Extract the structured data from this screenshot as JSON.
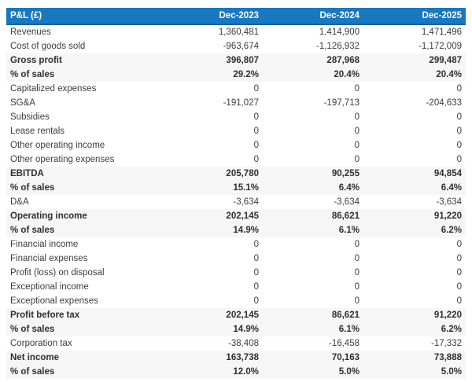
{
  "colors": {
    "header_bg": "#1878c0",
    "header_border": "#15629e",
    "header_text": "#ffffff",
    "total_row_bg": "#f6f6f6",
    "body_text": "#3c3c3c"
  },
  "chart_data": {
    "type": "table",
    "title": "P&L (£)",
    "header": {
      "label": "P&L (£)",
      "columns": [
        "Dec-2023",
        "Dec-2024",
        "Dec-2025"
      ]
    },
    "rows": [
      {
        "label": "Revenues",
        "values": [
          "1,360,481",
          "1,414,900",
          "1,471,496"
        ],
        "emphasis": false
      },
      {
        "label": "Cost of goods sold",
        "values": [
          "-963,674",
          "-1,126,932",
          "-1,172,009"
        ],
        "emphasis": false
      },
      {
        "label": "Gross profit",
        "values": [
          "396,807",
          "287,968",
          "299,487"
        ],
        "emphasis": true
      },
      {
        "label": "% of sales",
        "values": [
          "29.2%",
          "20.4%",
          "20.4%"
        ],
        "emphasis": true
      },
      {
        "label": "Capitalized expenses",
        "values": [
          "0",
          "0",
          "0"
        ],
        "emphasis": false
      },
      {
        "label": "SG&A",
        "values": [
          "-191,027",
          "-197,713",
          "-204,633"
        ],
        "emphasis": false
      },
      {
        "label": "Subsidies",
        "values": [
          "0",
          "0",
          "0"
        ],
        "emphasis": false
      },
      {
        "label": "Lease rentals",
        "values": [
          "0",
          "0",
          "0"
        ],
        "emphasis": false
      },
      {
        "label": "Other operating income",
        "values": [
          "0",
          "0",
          "0"
        ],
        "emphasis": false
      },
      {
        "label": "Other operating expenses",
        "values": [
          "0",
          "0",
          "0"
        ],
        "emphasis": false
      },
      {
        "label": "EBITDA",
        "values": [
          "205,780",
          "90,255",
          "94,854"
        ],
        "emphasis": true
      },
      {
        "label": "% of sales",
        "values": [
          "15.1%",
          "6.4%",
          "6.4%"
        ],
        "emphasis": true
      },
      {
        "label": "D&A",
        "values": [
          "-3,634",
          "-3,634",
          "-3,634"
        ],
        "emphasis": false
      },
      {
        "label": "Operating income",
        "values": [
          "202,145",
          "86,621",
          "91,220"
        ],
        "emphasis": true
      },
      {
        "label": "% of sales",
        "values": [
          "14.9%",
          "6.1%",
          "6.2%"
        ],
        "emphasis": true
      },
      {
        "label": "Financial income",
        "values": [
          "0",
          "0",
          "0"
        ],
        "emphasis": false
      },
      {
        "label": "Financial expenses",
        "values": [
          "0",
          "0",
          "0"
        ],
        "emphasis": false
      },
      {
        "label": "Profit (loss) on disposal",
        "values": [
          "0",
          "0",
          "0"
        ],
        "emphasis": false
      },
      {
        "label": "Exceptional income",
        "values": [
          "0",
          "0",
          "0"
        ],
        "emphasis": false
      },
      {
        "label": "Exceptional expenses",
        "values": [
          "0",
          "0",
          "0"
        ],
        "emphasis": false
      },
      {
        "label": "Profit before tax",
        "values": [
          "202,145",
          "86,621",
          "91,220"
        ],
        "emphasis": true
      },
      {
        "label": "% of sales",
        "values": [
          "14.9%",
          "6.1%",
          "6.2%"
        ],
        "emphasis": true
      },
      {
        "label": "Corporation tax",
        "values": [
          "-38,408",
          "-16,458",
          "-17,332"
        ],
        "emphasis": false
      },
      {
        "label": "Net income",
        "values": [
          "163,738",
          "70,163",
          "73,888"
        ],
        "emphasis": true
      },
      {
        "label": "% of sales",
        "values": [
          "12.0%",
          "5.0%",
          "5.0%"
        ],
        "emphasis": true
      }
    ]
  }
}
